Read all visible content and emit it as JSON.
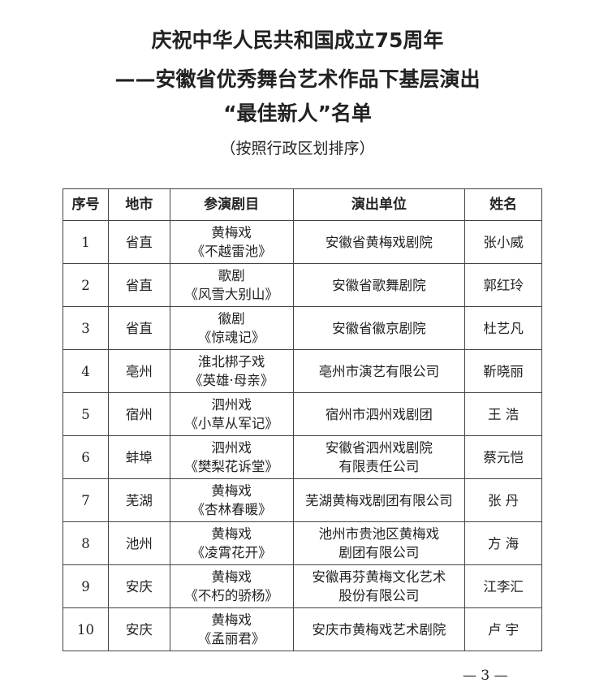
{
  "title": {
    "line1": "庆祝中华人民共和国成立75周年",
    "line2": "——安徽省优秀舞台艺术作品下基层演出",
    "line3": "“最佳新人”名单",
    "subtitle": "（按照行政区划排序）"
  },
  "table": {
    "headers": [
      "序号",
      "地市",
      "参演剧目",
      "演出单位",
      "姓名"
    ],
    "rows": [
      {
        "no": "1",
        "city": "省直",
        "genre": "黄梅戏",
        "play": "《不越雷池》",
        "unit1": "安徽省黄梅戏剧院",
        "unit2": "",
        "name": "张小威"
      },
      {
        "no": "2",
        "city": "省直",
        "genre": "歌剧",
        "play": "《风雪大别山》",
        "unit1": "安徽省歌舞剧院",
        "unit2": "",
        "name": "郭红玲"
      },
      {
        "no": "3",
        "city": "省直",
        "genre": "徽剧",
        "play": "《惊魂记》",
        "unit1": "安徽省徽京剧院",
        "unit2": "",
        "name": "杜艺凡"
      },
      {
        "no": "4",
        "city": "亳州",
        "genre": "淮北梆子戏",
        "play": "《英雄·母亲》",
        "unit1": "亳州市演艺有限公司",
        "unit2": "",
        "name": "靳晓丽"
      },
      {
        "no": "5",
        "city": "宿州",
        "genre": "泗州戏",
        "play": "《小草从军记》",
        "unit1": "宿州市泗州戏剧团",
        "unit2": "",
        "name": "王 浩"
      },
      {
        "no": "6",
        "city": "蚌埠",
        "genre": "泗州戏",
        "play": "《樊梨花诉堂》",
        "unit1": "安徽省泗州戏剧院",
        "unit2": "有限责任公司",
        "name": "蔡元恺"
      },
      {
        "no": "7",
        "city": "芜湖",
        "genre": "黄梅戏",
        "play": "《杏林春暖》",
        "unit1": "芜湖黄梅戏剧团有限公司",
        "unit2": "",
        "name": "张 丹"
      },
      {
        "no": "8",
        "city": "池州",
        "genre": "黄梅戏",
        "play": "《凌霄花开》",
        "unit1": "池州市贵池区黄梅戏",
        "unit2": "剧团有限公司",
        "name": "方 海"
      },
      {
        "no": "9",
        "city": "安庆",
        "genre": "黄梅戏",
        "play": "《不朽的骄杨》",
        "unit1": "安徽再芬黄梅文化艺术",
        "unit2": "股份有限公司",
        "name": "江李汇"
      },
      {
        "no": "10",
        "city": "安庆",
        "genre": "黄梅戏",
        "play": "《孟丽君》",
        "unit1": "安庆市黄梅戏艺术剧院",
        "unit2": "",
        "name": "卢 宇"
      }
    ]
  },
  "page_number": "— 3 —"
}
